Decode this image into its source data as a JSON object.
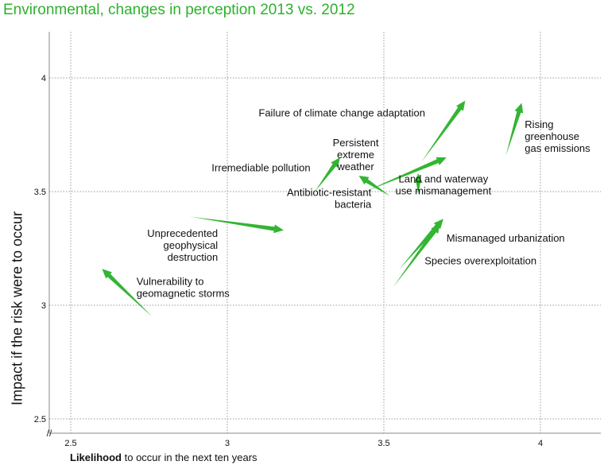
{
  "title": "Environmental, changes in perception 2013 vs. 2012",
  "chart_data": {
    "type": "scatter",
    "title": "Environmental, changes in perception 2013 vs. 2012",
    "xlabel_bold": "Likelihood",
    "xlabel_rest": " to occur in the next ten years",
    "ylabel": "Impact if the risk were to occur",
    "xlim": [
      2.45,
      4.2
    ],
    "ylim": [
      2.45,
      4.2
    ],
    "x_ticks": [
      2.5,
      3,
      3.5,
      4
    ],
    "x_tick_labels": [
      "2.5",
      "3",
      "3.5",
      "4"
    ],
    "y_ticks": [
      2.5,
      3,
      3.5,
      4
    ],
    "y_tick_labels": [
      "2.5",
      "3",
      "3.5",
      "4"
    ],
    "grid": true,
    "axis_break_marker": "//",
    "arrow_color": "#33b533",
    "series": [
      {
        "name": "Failure of climate change adaptation",
        "from": [
          3.62,
          3.63
        ],
        "to": [
          3.76,
          3.9
        ]
      },
      {
        "name": "Rising greenhouse gas emissions",
        "from": [
          3.89,
          3.66
        ],
        "to": [
          3.94,
          3.89
        ]
      },
      {
        "name": "Persistent extreme weather",
        "from": [
          3.44,
          3.5
        ],
        "to": [
          3.7,
          3.65
        ]
      },
      {
        "name": "Irremediable pollution",
        "from": [
          3.28,
          3.5
        ],
        "to": [
          3.36,
          3.65
        ]
      },
      {
        "name": "Antibiotic-resistant bacteria",
        "from": [
          3.52,
          3.48
        ],
        "to": [
          3.42,
          3.57
        ]
      },
      {
        "name": "Land and waterway use mismanagement",
        "from": [
          3.61,
          3.49
        ],
        "to": [
          3.61,
          3.58
        ]
      },
      {
        "name": "Unprecedented geophysical destruction",
        "from": [
          2.88,
          3.39
        ],
        "to": [
          3.18,
          3.33
        ]
      },
      {
        "name": "Mismanaged urbanization",
        "from": [
          3.55,
          3.16
        ],
        "to": [
          3.69,
          3.38
        ]
      },
      {
        "name": "Species overexploitation",
        "from": [
          3.53,
          3.08
        ],
        "to": [
          3.68,
          3.36
        ]
      },
      {
        "name": "Vulnerability to geomagnetic storms",
        "from": [
          2.76,
          2.95
        ],
        "to": [
          2.6,
          3.16
        ]
      }
    ],
    "annotations": [
      {
        "lines": [
          "Failure of climate change adaptation"
        ],
        "x": 3.1,
        "y": 3.83,
        "anchor": "start"
      },
      {
        "lines": [
          "Rising",
          "greenhouse",
          "gas emissions"
        ],
        "x": 3.95,
        "y": 3.78,
        "anchor": "start"
      },
      {
        "lines": [
          "Persistent",
          "extreme",
          "weather"
        ],
        "x": 3.41,
        "y": 3.7,
        "anchor": "middle"
      },
      {
        "lines": [
          "Irremediable pollution"
        ],
        "x": 2.95,
        "y": 3.59,
        "anchor": "start"
      },
      {
        "lines": [
          "Antibiotic-resistant",
          "bacteria"
        ],
        "x": 3.46,
        "y": 3.48,
        "anchor": "end"
      },
      {
        "lines": [
          "Land and waterway",
          "use mismanagement"
        ],
        "x": 3.69,
        "y": 3.54,
        "anchor": "middle"
      },
      {
        "lines": [
          "Unprecedented",
          "geophysical",
          "destruction"
        ],
        "x": 2.97,
        "y": 3.3,
        "anchor": "end"
      },
      {
        "lines": [
          "Mismanaged urbanization"
        ],
        "x": 3.7,
        "y": 3.28,
        "anchor": "start"
      },
      {
        "lines": [
          "Species overexploitation"
        ],
        "x": 3.63,
        "y": 3.18,
        "anchor": "start"
      },
      {
        "lines": [
          "Vulnerability to",
          "geomagnetic storms"
        ],
        "x": 2.71,
        "y": 3.09,
        "anchor": "start"
      }
    ]
  }
}
